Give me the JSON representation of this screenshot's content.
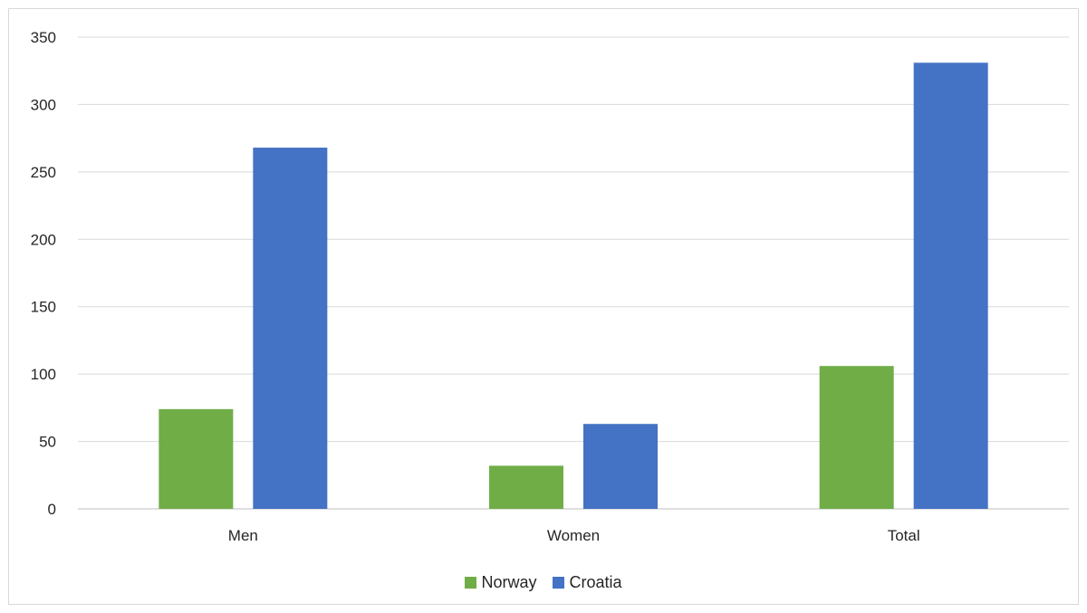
{
  "chart_data": {
    "type": "bar",
    "title": "",
    "xlabel": "",
    "ylabel": "",
    "categories": [
      "Men",
      "Women",
      "Total"
    ],
    "series": [
      {
        "name": "Norway",
        "values": [
          74,
          32,
          106
        ],
        "color": "#70ad47"
      },
      {
        "name": "Croatia",
        "values": [
          268,
          63,
          331
        ],
        "color": "#4472c4"
      }
    ],
    "ylim": [
      0,
      350
    ],
    "yticks": [
      "0",
      "50",
      "100",
      "150",
      "200",
      "250",
      "300",
      "350"
    ],
    "grid": true,
    "legend_position": "bottom"
  }
}
